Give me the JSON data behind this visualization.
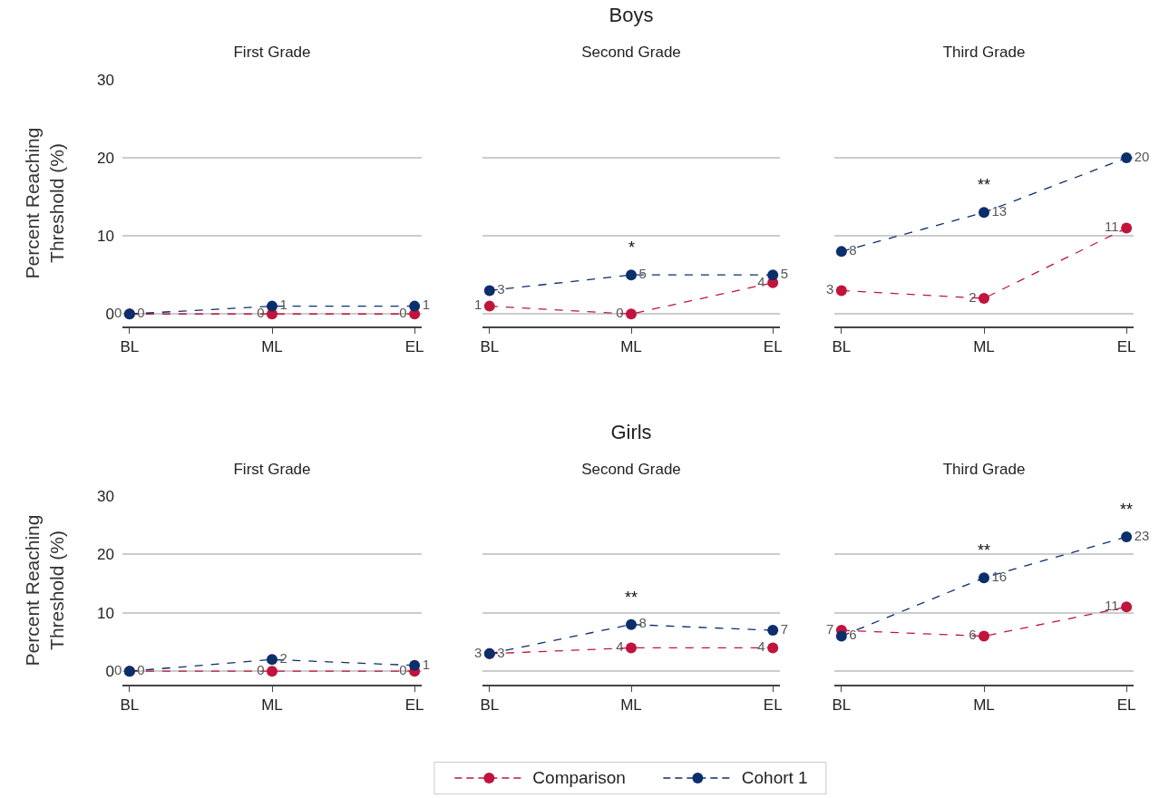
{
  "chart_data": [
    {
      "type": "line",
      "title": "First Grade",
      "ylabel": "Percent Reaching\nThreshold (%)",
      "categories": [
        "BL",
        "ML",
        "EL"
      ],
      "series": [
        {
          "name": "Comparison",
          "color": "#c0143c",
          "values": [
            0,
            0,
            0
          ]
        },
        {
          "name": "Cohort 1",
          "color": "#0b2f6b",
          "values": [
            0,
            1,
            1
          ]
        }
      ],
      "ylim": [
        -1.6,
        30
      ],
      "yticks": [
        0,
        10,
        20,
        30
      ],
      "grid": "y",
      "marker": "circle",
      "line_style": "dashed",
      "data_labels": true,
      "legend": "bottom"
    },
    {
      "type": "line",
      "title": "Second Grade",
      "subtitle": "Boys",
      "categories": [
        "BL",
        "ML",
        "EL"
      ],
      "series": [
        {
          "color": "#c0143c",
          "values": [
            1,
            0,
            4
          ]
        },
        {
          "color": "#0b2f6b",
          "values": [
            3,
            5,
            5
          ]
        }
      ],
      "annotations": [
        {
          "text": "*",
          "x": "ML",
          "y": 5
        }
      ],
      "ylim": [
        -1.6,
        30
      ],
      "yticks": [
        0,
        10,
        20,
        30
      ],
      "grid": "y",
      "marker": "circle",
      "line_style": "dashed",
      "data_labels": true,
      "tick_labels": "x"
    },
    {
      "type": "line",
      "title": "Third Grade",
      "categories": [
        "BL",
        "ML",
        "EL"
      ],
      "series": [
        {
          "color": "#c0143c",
          "values": [
            3,
            2,
            11
          ]
        },
        {
          "color": "#0b2f6b",
          "values": [
            8,
            13,
            20
          ]
        }
      ],
      "annotations": [
        {
          "text": "**",
          "x": "ML",
          "y": 13
        }
      ],
      "ylim": [
        -1.6,
        30
      ],
      "yticks": [
        0,
        10,
        20,
        30
      ],
      "grid": "y",
      "marker": "circle",
      "line_style": "dashed",
      "data_labels": true,
      "tick_labels": "x"
    },
    {
      "type": "line",
      "title": "First Grade",
      "ylabel": "Percent Reaching\nThreshold (%)",
      "categories": [
        "BL",
        "ML",
        "EL"
      ],
      "series": [
        {
          "color": "#c0143c",
          "values": [
            0,
            0,
            0
          ]
        },
        {
          "color": "#0b2f6b",
          "values": [
            0,
            2,
            1
          ]
        }
      ],
      "ylim": [
        -2.3,
        30
      ],
      "yticks": [
        0,
        10,
        20,
        30
      ],
      "grid": "y",
      "marker": "circle",
      "line_style": "dashed",
      "data_labels": true
    },
    {
      "type": "line",
      "title": "Second Grade",
      "subtitle": "Girls",
      "categories": [
        "BL",
        "ML",
        "EL"
      ],
      "series": [
        {
          "color": "#c0143c",
          "values": [
            3,
            4,
            4
          ]
        },
        {
          "color": "#0b2f6b",
          "values": [
            3,
            8,
            7
          ]
        }
      ],
      "annotations": [
        {
          "text": "**",
          "x": "ML",
          "y": 8
        }
      ],
      "ylim": [
        -2.3,
        30
      ],
      "yticks": [
        0,
        10,
        20,
        30
      ],
      "grid": "y",
      "marker": "circle",
      "line_style": "dashed",
      "data_labels": true,
      "tick_labels": "x"
    },
    {
      "type": "line",
      "title": "Third Grade",
      "categories": [
        "BL",
        "ML",
        "EL"
      ],
      "series": [
        {
          "color": "#c0143c",
          "values": [
            7,
            6,
            11
          ]
        },
        {
          "color": "#0b2f6b",
          "values": [
            6,
            16,
            23
          ]
        }
      ],
      "annotations": [
        {
          "text": "**",
          "x": "ML",
          "y": 16
        },
        {
          "text": "**",
          "x": "EL",
          "y": 23
        }
      ],
      "ylim": [
        -2.3,
        30
      ],
      "yticks": [
        0,
        10,
        20,
        30
      ],
      "grid": "y",
      "marker": "circle",
      "line_style": "dashed",
      "data_labels": true,
      "tick_labels": "x"
    }
  ]
}
